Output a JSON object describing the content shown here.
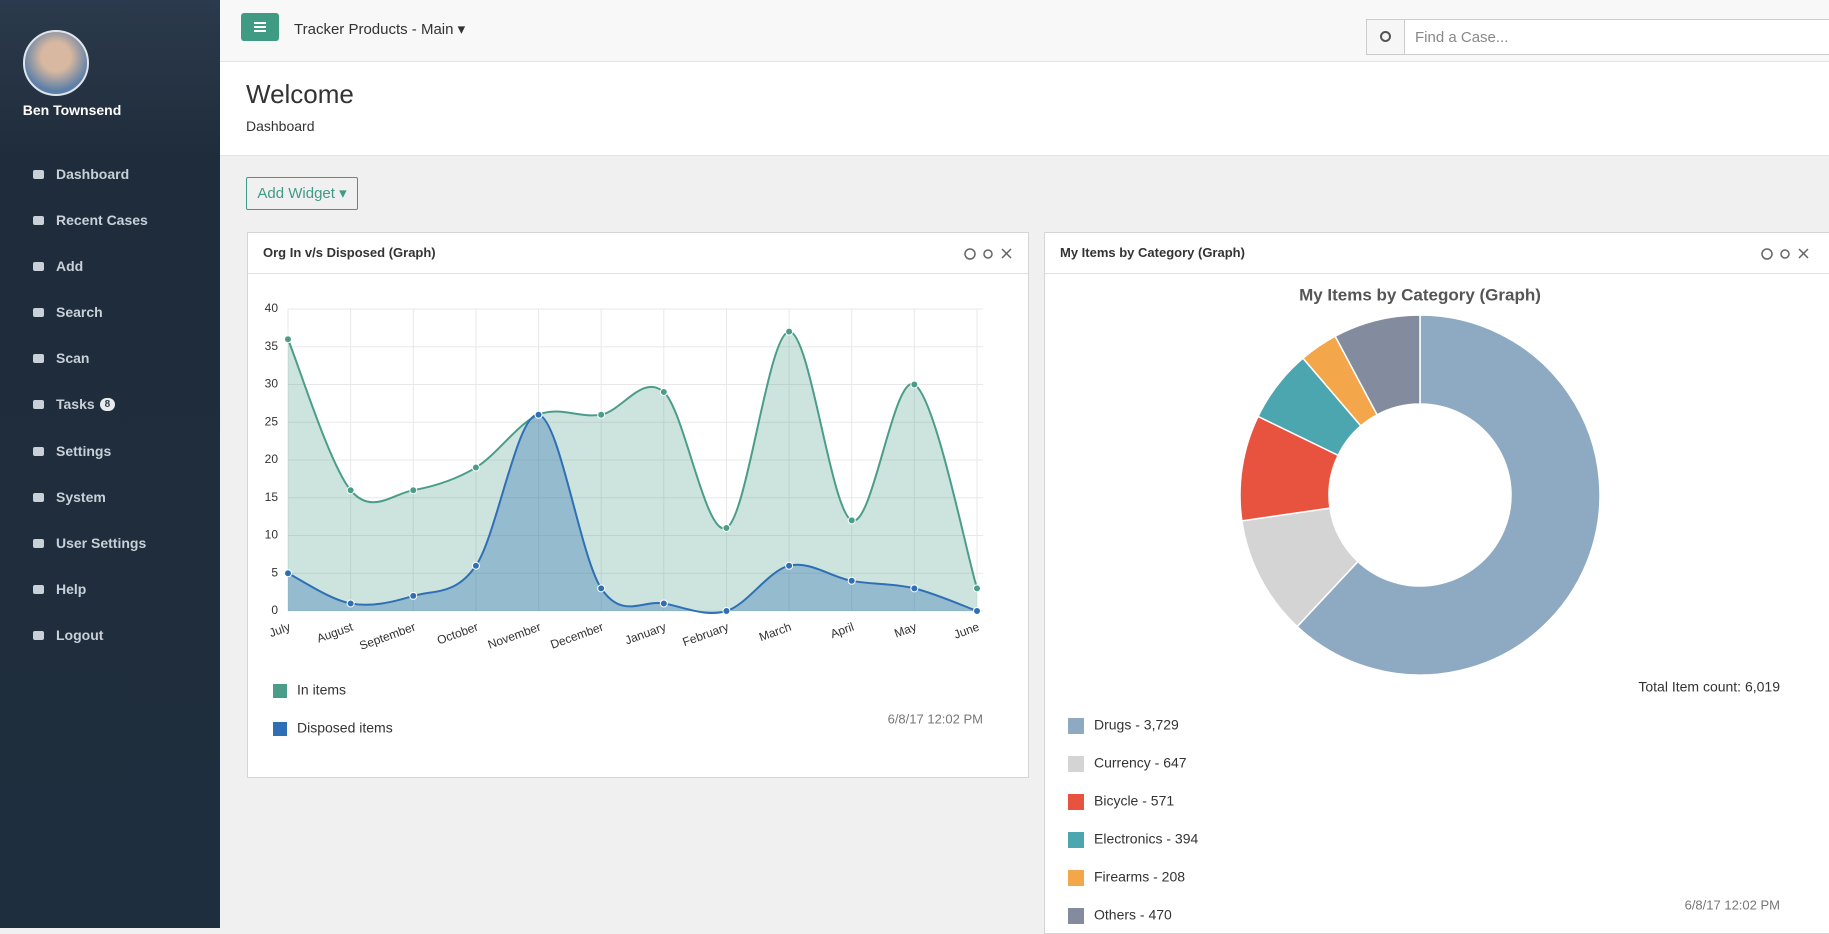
{
  "user": {
    "name": "Ben Townsend"
  },
  "sidebar": {
    "items": [
      {
        "label": "Dashboard"
      },
      {
        "label": "Recent Cases"
      },
      {
        "label": "Add"
      },
      {
        "label": "Search"
      },
      {
        "label": "Scan"
      },
      {
        "label": "Tasks",
        "badge": 8
      },
      {
        "label": "Settings"
      },
      {
        "label": "System"
      },
      {
        "label": "User Settings"
      },
      {
        "label": "Help"
      },
      {
        "label": "Logout"
      }
    ]
  },
  "topbar": {
    "product": "Tracker Products - Main",
    "search_placeholder": "Find a Case..."
  },
  "header": {
    "title": "Welcome",
    "subtitle": "Dashboard"
  },
  "add_widget": "Add Widget",
  "widgets": [
    {
      "title": "Org In v/s Disposed (Graph)",
      "timestamp": "6/8/17 12:02 PM"
    },
    {
      "title": "My Items by Category (Graph)",
      "timestamp": "6/8/17 12:02 PM"
    }
  ],
  "chart_data": [
    {
      "type": "line",
      "categories": [
        "July",
        "August",
        "September",
        "October",
        "November",
        "December",
        "January",
        "February",
        "March",
        "April",
        "May",
        "June"
      ],
      "series": [
        {
          "name": "In items",
          "color": "#4a9d88",
          "values": [
            36,
            16,
            16,
            19,
            26,
            26,
            29,
            11,
            37,
            12,
            30,
            3
          ]
        },
        {
          "name": "Disposed items",
          "color": "#2f6fb5",
          "values": [
            5,
            1,
            2,
            6,
            26,
            3,
            1,
            0,
            6,
            4,
            3,
            0
          ]
        }
      ],
      "ylim": [
        0,
        40
      ],
      "yticks": [
        0,
        5,
        10,
        15,
        20,
        25,
        30,
        35,
        40
      ],
      "grid": true
    },
    {
      "type": "pie",
      "title": "My Items by Category (Graph)",
      "values": [
        3729,
        647,
        571,
        394,
        208,
        470
      ],
      "value_labels": [
        "Drugs - 3,729",
        "Currency - 647",
        "Bicycle - 571",
        "Electronics - 394",
        "Firearms - 208",
        "Others - 470"
      ],
      "colors": [
        "#8eaac3",
        "#d4d4d4",
        "#e8533f",
        "#4ba6b0",
        "#f4a64a",
        "#838b9e"
      ],
      "total_label": "Total Item count: 6,019"
    }
  ]
}
